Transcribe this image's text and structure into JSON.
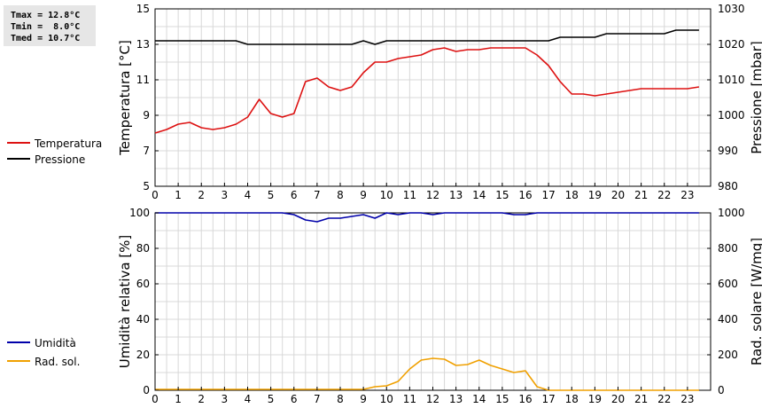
{
  "stats": {
    "tmax": "Tmax = 12.8°C",
    "tmin": "Tmin =  8.0°C",
    "tmed": "Tmed = 10.7°C"
  },
  "legend": {
    "temperatura": "Temperatura",
    "pressione": "Pressione",
    "umidita": "Umidità",
    "radsol": "Rad. sol."
  },
  "colors": {
    "temperatura": "#dd1111",
    "pressione": "#000000",
    "umidita": "#0000aa",
    "radsol": "#f0a000"
  },
  "chart_data": [
    {
      "type": "line",
      "x_label_ticks": [
        "0",
        "1",
        "2",
        "3",
        "4",
        "5",
        "6",
        "7",
        "8",
        "9",
        "10",
        "11",
        "12",
        "13",
        "14",
        "15",
        "16",
        "17",
        "18",
        "19",
        "20",
        "21",
        "22",
        "23"
      ],
      "xlim": [
        0,
        24
      ],
      "grid": true,
      "legend_position": "left",
      "left_axis": {
        "label": "Temperatura [°C]",
        "ylim": [
          5,
          15
        ],
        "ticks": [
          5,
          7,
          9,
          11,
          13,
          15
        ]
      },
      "right_axis": {
        "label": "Pressione [mbar]",
        "ylim": [
          980,
          1030
        ],
        "ticks": [
          980,
          990,
          1000,
          1010,
          1020,
          1030
        ]
      },
      "series": [
        {
          "name": "Temperatura",
          "axis": "left",
          "color": "#dd1111",
          "x": [
            0,
            0.5,
            1,
            1.5,
            2,
            2.5,
            3,
            3.5,
            4,
            4.5,
            5,
            5.5,
            6,
            6.5,
            7,
            7.5,
            8,
            8.5,
            9,
            9.5,
            10,
            10.5,
            11,
            11.5,
            12,
            12.5,
            13,
            13.5,
            14,
            14.5,
            15,
            15.5,
            16,
            16.5,
            17,
            17.5,
            18,
            18.5,
            19,
            19.5,
            20,
            20.5,
            21,
            21.5,
            22,
            22.5,
            23,
            23.5
          ],
          "values": [
            8.0,
            8.2,
            8.5,
            8.6,
            8.3,
            8.2,
            8.3,
            8.5,
            8.9,
            9.9,
            9.1,
            8.9,
            9.1,
            10.9,
            11.1,
            10.6,
            10.4,
            10.6,
            11.4,
            12.0,
            12.0,
            12.2,
            12.3,
            12.4,
            12.7,
            12.8,
            12.6,
            12.7,
            12.7,
            12.8,
            12.8,
            12.8,
            12.8,
            12.4,
            11.8,
            10.9,
            10.2,
            10.2,
            10.1,
            10.2,
            10.3,
            10.4,
            10.5,
            10.5,
            10.5,
            10.5,
            10.5,
            10.6
          ]
        },
        {
          "name": "Pressione",
          "axis": "right",
          "color": "#000000",
          "x": [
            0,
            0.5,
            1,
            1.5,
            2,
            2.5,
            3,
            3.5,
            4,
            4.5,
            5,
            5.5,
            6,
            6.5,
            7,
            7.5,
            8,
            8.5,
            9,
            9.5,
            10,
            10.5,
            11,
            11.5,
            12,
            12.5,
            13,
            13.5,
            14,
            14.5,
            15,
            15.5,
            16,
            16.5,
            17,
            17.5,
            18,
            18.5,
            19,
            19.5,
            20,
            20.5,
            21,
            21.5,
            22,
            22.5,
            23,
            23.5
          ],
          "values": [
            1021,
            1021,
            1021,
            1021,
            1021,
            1021,
            1021,
            1021,
            1020,
            1020,
            1020,
            1020,
            1020,
            1020,
            1020,
            1020,
            1020,
            1020,
            1021,
            1020,
            1021,
            1021,
            1021,
            1021,
            1021,
            1021,
            1021,
            1021,
            1021,
            1021,
            1021,
            1021,
            1021,
            1021,
            1021,
            1022,
            1022,
            1022,
            1022,
            1023,
            1023,
            1023,
            1023,
            1023,
            1023,
            1024,
            1024,
            1024
          ]
        }
      ]
    },
    {
      "type": "line",
      "x_label_ticks": [
        "0",
        "1",
        "2",
        "3",
        "4",
        "5",
        "6",
        "7",
        "8",
        "9",
        "10",
        "11",
        "12",
        "13",
        "14",
        "15",
        "16",
        "17",
        "18",
        "19",
        "20",
        "21",
        "22",
        "23"
      ],
      "xlim": [
        0,
        24
      ],
      "grid": true,
      "legend_position": "left",
      "left_axis": {
        "label": "Umidità relativa [%]",
        "ylim": [
          0,
          100
        ],
        "ticks": [
          0,
          20,
          40,
          60,
          80,
          100
        ]
      },
      "right_axis": {
        "label": "Rad. solare [W/mq]",
        "ylim": [
          0,
          1000
        ],
        "ticks": [
          0,
          200,
          400,
          600,
          800,
          1000
        ]
      },
      "series": [
        {
          "name": "Umidità",
          "axis": "left",
          "color": "#0000aa",
          "x": [
            0,
            0.5,
            1,
            1.5,
            2,
            2.5,
            3,
            3.5,
            4,
            4.5,
            5,
            5.5,
            6,
            6.5,
            7,
            7.5,
            8,
            8.5,
            9,
            9.5,
            10,
            10.5,
            11,
            11.5,
            12,
            12.5,
            13,
            13.5,
            14,
            14.5,
            15,
            15.5,
            16,
            16.5,
            17,
            17.5,
            18,
            18.5,
            19,
            19.5,
            20,
            20.5,
            21,
            21.5,
            22,
            22.5,
            23,
            23.5
          ],
          "values": [
            100,
            100,
            100,
            100,
            100,
            100,
            100,
            100,
            100,
            100,
            100,
            100,
            99,
            96,
            95,
            97,
            97,
            98,
            99,
            97,
            100,
            99,
            100,
            100,
            99,
            100,
            100,
            100,
            100,
            100,
            100,
            99,
            99,
            100,
            100,
            100,
            100,
            100,
            100,
            100,
            100,
            100,
            100,
            100,
            100,
            100,
            100,
            100
          ]
        },
        {
          "name": "Rad. sol.",
          "axis": "right",
          "color": "#f0a000",
          "x": [
            0,
            0.5,
            1,
            1.5,
            2,
            2.5,
            3,
            3.5,
            4,
            4.5,
            5,
            5.5,
            6,
            6.5,
            7,
            7.5,
            8,
            8.5,
            9,
            9.5,
            10,
            10.5,
            11,
            11.5,
            12,
            12.5,
            13,
            13.5,
            14,
            14.5,
            15,
            15.5,
            16,
            16.5,
            17,
            17.5,
            18,
            18.5,
            19,
            19.5,
            20,
            20.5,
            21,
            21.5,
            22,
            22.5,
            23,
            23.5
          ],
          "values": [
            5,
            5,
            5,
            5,
            5,
            5,
            5,
            5,
            5,
            5,
            5,
            5,
            5,
            5,
            5,
            5,
            5,
            5,
            5,
            20,
            25,
            50,
            120,
            170,
            180,
            175,
            140,
            145,
            170,
            140,
            120,
            100,
            110,
            20,
            0,
            0,
            0,
            0,
            0,
            0,
            0,
            0,
            0,
            0,
            0,
            0,
            0,
            0
          ]
        }
      ]
    }
  ]
}
